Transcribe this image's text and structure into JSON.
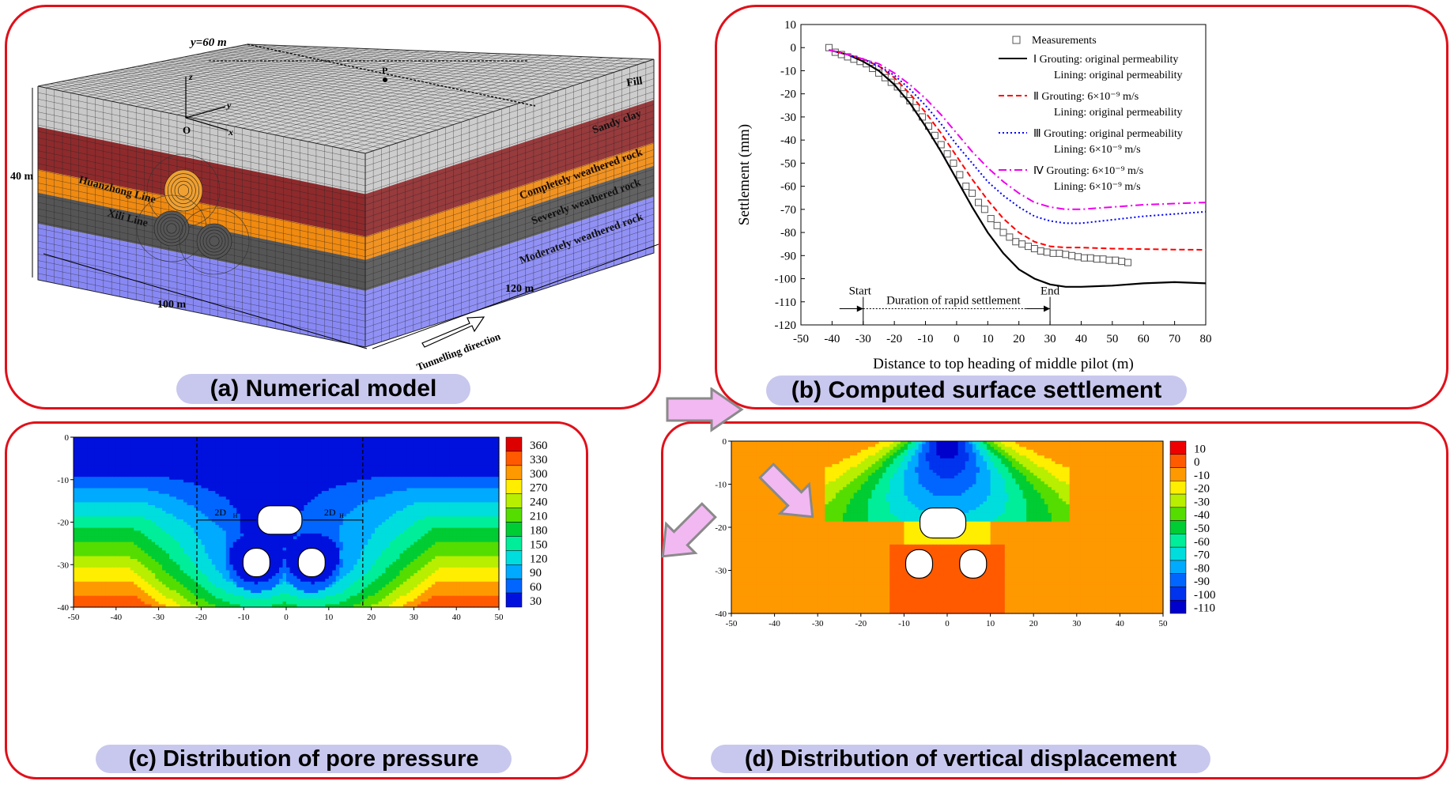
{
  "captions": {
    "a": "(a) Numerical model",
    "b": "(b) Computed surface settlement",
    "c": "(c) Distribution of pore pressure",
    "d": "(d) Distribution of vertical displacement"
  },
  "model": {
    "y_label": "y=60 m",
    "point_label": "P",
    "origin_label": "O",
    "axis_x": "x",
    "axis_y": "y",
    "axis_z": "z",
    "height_label": "40 m",
    "width_label": "100 m",
    "depth_label": "120 m",
    "direction_label": "Tunnelling direction",
    "tunnel_1": "Huanzhong Line",
    "tunnel_2": "Xili Line",
    "layers": [
      {
        "name": "Fill",
        "color": "#c9c9c9"
      },
      {
        "name": "Sandy clay",
        "color": "#8e2a2c"
      },
      {
        "name": "Completely weathered rock",
        "color": "#f08a10"
      },
      {
        "name": "Severely weathered rock",
        "color": "#555555"
      },
      {
        "name": "Moderately weathered rock",
        "color": "#8888f4"
      }
    ]
  },
  "chart_data": [
    {
      "type": "line",
      "xlabel": "Distance to top heading of middle pilot (m)",
      "ylabel": "Settlement (mm)",
      "xlim": [
        -50,
        80
      ],
      "ylim": [
        -120,
        10
      ],
      "xticks": [
        -50,
        -40,
        -30,
        -20,
        -10,
        0,
        10,
        20,
        30,
        40,
        50,
        60,
        70,
        80
      ],
      "yticks": [
        10,
        0,
        -10,
        -20,
        -30,
        -40,
        -50,
        -60,
        -70,
        -80,
        -90,
        -100,
        -110,
        -120
      ],
      "annotations": {
        "start": "Start",
        "end": "End",
        "duration": "Duration of rapid settlement",
        "start_x": -30,
        "end_x": 30,
        "y": -113
      },
      "legend_position": "top-right",
      "series": [
        {
          "name": "Measurements",
          "kind": "markers",
          "color": "#555555",
          "x": [
            -41,
            -39,
            -37,
            -35,
            -33,
            -31,
            -29,
            -27,
            -25,
            -23,
            -21,
            -19,
            -17,
            -15,
            -13,
            -11,
            -9,
            -7,
            -5,
            -3,
            -1,
            1,
            3,
            5,
            7,
            9,
            11,
            13,
            15,
            17,
            19,
            21,
            23,
            25,
            27,
            29,
            31,
            33,
            35,
            37,
            39,
            41,
            43,
            45,
            47,
            49,
            51,
            53,
            55
          ],
          "y": [
            0,
            -2,
            -3,
            -4,
            -5,
            -6,
            -7,
            -9,
            -11,
            -13,
            -15,
            -17,
            -20,
            -23,
            -26,
            -30,
            -34,
            -38,
            -42,
            -46,
            -50,
            -55,
            -60,
            -63,
            -67,
            -70,
            -74,
            -77,
            -80,
            -82,
            -84,
            -85,
            -86,
            -87,
            -88,
            -88.5,
            -89,
            -89,
            -89.5,
            -90,
            -90.5,
            -91,
            -91,
            -91.5,
            -91.5,
            -92,
            -92,
            -92.5,
            -93
          ]
        },
        {
          "name": "Ⅰ  Grouting: original permeability",
          "sub": "Lining: original permeability",
          "kind": "solid",
          "color": "#000000",
          "x": [
            -41,
            -35,
            -30,
            -25,
            -20,
            -15,
            -10,
            -5,
            0,
            5,
            10,
            15,
            20,
            25,
            30,
            35,
            40,
            50,
            60,
            70,
            80
          ],
          "y": [
            -1,
            -3,
            -6,
            -10,
            -16,
            -24,
            -34,
            -45,
            -57,
            -69,
            -80,
            -89,
            -96,
            -100,
            -102.5,
            -103.5,
            -103.5,
            -103,
            -102,
            -101.5,
            -102
          ]
        },
        {
          "name": "Ⅱ  Grouting: 6×10⁻⁹ m/s",
          "sub": "Lining: original permeability",
          "kind": "dashed",
          "color": "#ff0000",
          "x": [
            -41,
            -35,
            -30,
            -25,
            -20,
            -15,
            -10,
            -5,
            0,
            5,
            10,
            15,
            20,
            25,
            30,
            35,
            40,
            50,
            60,
            70,
            80
          ],
          "y": [
            -1,
            -3,
            -5,
            -8,
            -13,
            -20,
            -28,
            -37,
            -47,
            -57,
            -66,
            -74,
            -80,
            -84,
            -86,
            -86.5,
            -86.5,
            -87,
            -87.2,
            -87.4,
            -87.5
          ]
        },
        {
          "name": "Ⅲ  Grouting: original permeability",
          "sub": "Lining: 6×10⁻⁹ m/s",
          "kind": "dotted",
          "color": "#0000ff",
          "x": [
            -41,
            -35,
            -30,
            -25,
            -20,
            -15,
            -10,
            -5,
            0,
            5,
            10,
            15,
            20,
            25,
            30,
            35,
            40,
            50,
            60,
            70,
            80
          ],
          "y": [
            -1,
            -3,
            -5,
            -8,
            -12,
            -18,
            -25,
            -33,
            -42,
            -50,
            -58,
            -64,
            -69,
            -73,
            -75,
            -76,
            -76,
            -74.5,
            -73,
            -72,
            -71
          ]
        },
        {
          "name": "Ⅳ  Grouting: 6×10⁻⁹ m/s",
          "sub": "Lining: 6×10⁻⁹ m/s",
          "kind": "dashdot",
          "color": "#ee00ee",
          "x": [
            -41,
            -35,
            -30,
            -25,
            -20,
            -15,
            -10,
            -5,
            0,
            5,
            10,
            15,
            20,
            25,
            30,
            35,
            40,
            50,
            60,
            70,
            80
          ],
          "y": [
            -1,
            -3,
            -5,
            -7,
            -11,
            -16,
            -22,
            -29,
            -37,
            -45,
            -52,
            -58,
            -63,
            -67,
            -69,
            -70,
            -70,
            -69,
            -68,
            -67.5,
            -67
          ]
        }
      ]
    },
    {
      "type": "heatmap",
      "title": "Distribution of pore pressure",
      "xlim": [
        -50,
        50
      ],
      "ylim": [
        -40,
        0
      ],
      "xticks": [
        -50,
        -40,
        -30,
        -20,
        -10,
        0,
        10,
        20,
        30,
        40,
        50
      ],
      "yticks": [
        0,
        -10,
        -20,
        -30,
        -40
      ],
      "legend": [
        "360",
        "330",
        "300",
        "270",
        "240",
        "210",
        "180",
        "150",
        "120",
        "90",
        "60",
        "30"
      ],
      "levels": [
        360,
        330,
        300,
        270,
        240,
        210,
        180,
        150,
        120,
        90,
        60,
        30
      ],
      "colors": [
        "#dd0000",
        "#ff5a00",
        "#ff9900",
        "#ffee00",
        "#b8ee00",
        "#55dd00",
        "#00cc33",
        "#00ee99",
        "#00dddd",
        "#00aaff",
        "#0066ff",
        "#0011dd"
      ],
      "annotations": {
        "left": "2D",
        "left_sub": "H",
        "right": "2D",
        "right_sub": "H",
        "left_x": -21,
        "right_x": 18
      }
    },
    {
      "type": "heatmap",
      "title": "Distribution of vertical displacement",
      "xlim": [
        -50,
        50
      ],
      "ylim": [
        -40,
        0
      ],
      "xticks": [
        -50,
        -40,
        -30,
        -20,
        -10,
        0,
        10,
        20,
        30,
        40,
        50
      ],
      "yticks": [
        0,
        -10,
        -20,
        -30,
        -40
      ],
      "legend": [
        "10",
        "0",
        "-10",
        "-20",
        "-30",
        "-40",
        "-50",
        "-60",
        "-70",
        "-80",
        "-90",
        "-100",
        "-110"
      ],
      "levels": [
        10,
        0,
        -10,
        -20,
        -30,
        -40,
        -50,
        -60,
        -70,
        -80,
        -90,
        -100,
        -110
      ],
      "colors": [
        "#ee0000",
        "#ff5a00",
        "#ff9900",
        "#ffee00",
        "#b8ee00",
        "#55dd00",
        "#00cc33",
        "#00ee99",
        "#00dddd",
        "#00aaff",
        "#0066ff",
        "#0033ee",
        "#0000cc"
      ]
    }
  ]
}
